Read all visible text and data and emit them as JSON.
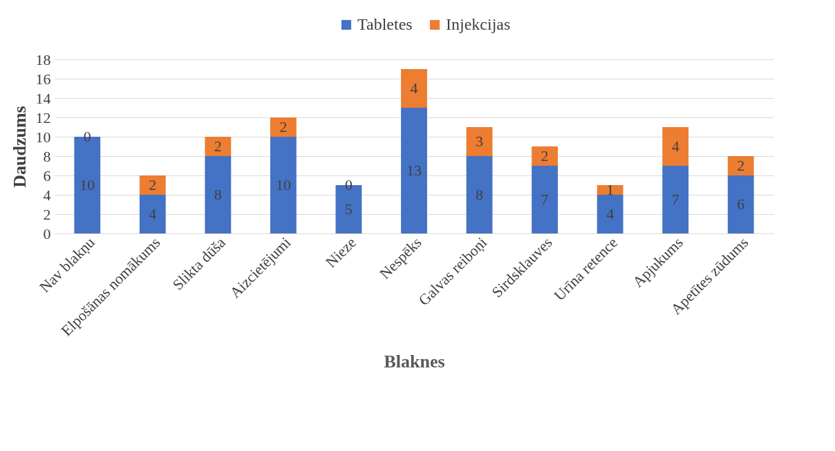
{
  "chart_data": {
    "type": "bar",
    "stacked": true,
    "xlabel": "Blaknes",
    "ylabel": "Daudzums",
    "categories": [
      "Nav blakņu",
      "Elpošānas nomākums",
      "Slikta dūša",
      "Aizcietējumi",
      "Nieze",
      "Nespēks",
      "Galvas reiboņi",
      "Sirdsklauves",
      "Urīna retence",
      "Apjukums",
      "Apetītes zūdums"
    ],
    "series": [
      {
        "name": "Tabletes",
        "color": "#4472c4",
        "values": [
          10,
          4,
          8,
          10,
          5,
          13,
          8,
          7,
          4,
          7,
          6
        ]
      },
      {
        "name": "Injekcijas",
        "color": "#ed7d31",
        "values": [
          0,
          2,
          2,
          2,
          0,
          4,
          3,
          2,
          1,
          4,
          2
        ]
      }
    ],
    "ylim": [
      0,
      18
    ],
    "yticks": [
      0,
      2,
      4,
      6,
      8,
      10,
      12,
      14,
      16,
      18
    ],
    "grid": "y",
    "legend": "top",
    "data_labels": true
  }
}
